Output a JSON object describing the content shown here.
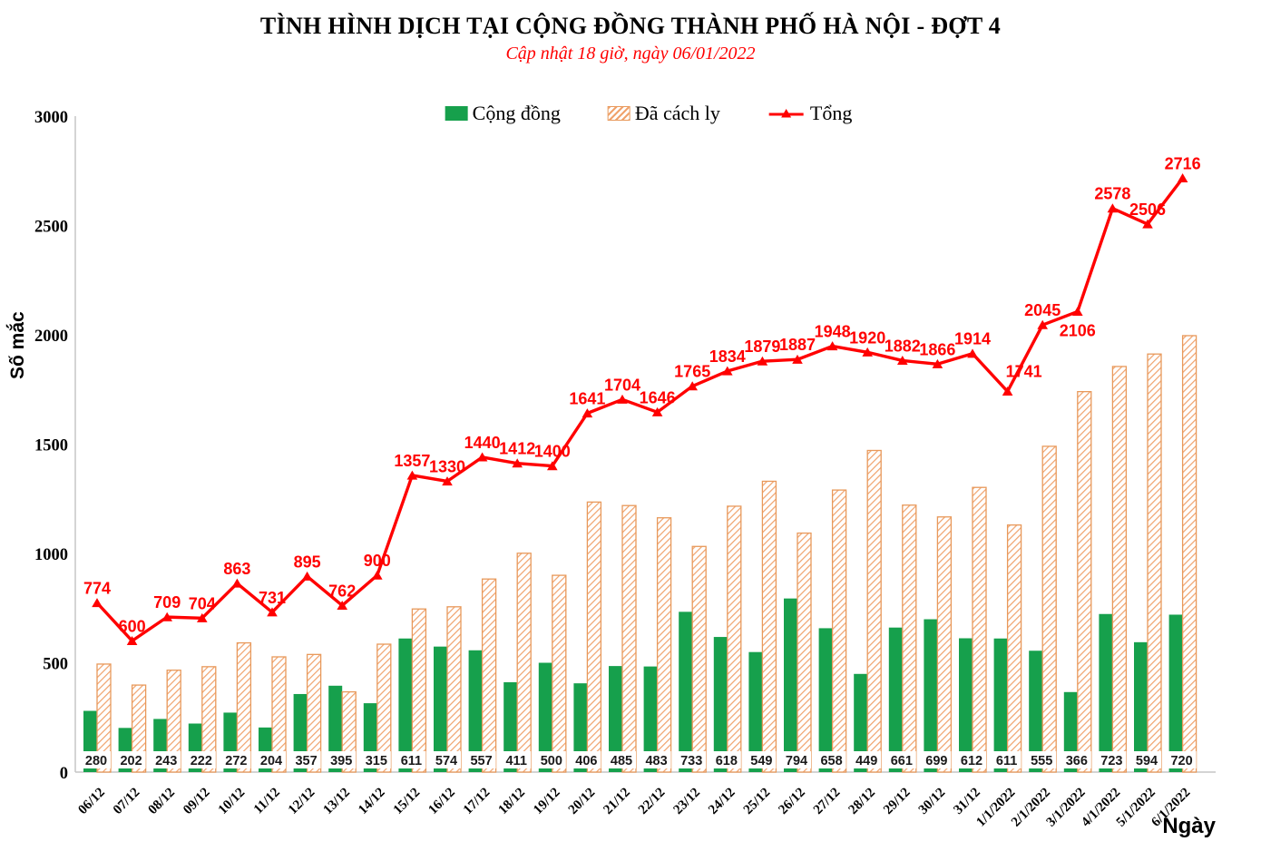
{
  "header": {
    "title": "TÌNH HÌNH DỊCH TẠI CỘNG ĐỒNG THÀNH PHỐ HÀ NỘI - ĐỢT 4",
    "subtitle": "Cập nhật 18 giờ, ngày 06/01/2022"
  },
  "legend": {
    "items": [
      {
        "label": "Cộng đồng",
        "swatch": "solid-green-bar"
      },
      {
        "label": "Đã cách ly",
        "swatch": "orange-hatched-bar"
      },
      {
        "label": "Tổng",
        "swatch": "red-line-triangle-marker"
      }
    ]
  },
  "axes": {
    "y_title": "Số mắc",
    "x_title": "Ngày",
    "y_ticks": [
      0,
      500,
      1000,
      1500,
      2000,
      2500,
      3000
    ]
  },
  "colors": {
    "community_green": "#16a04c",
    "isolated_orange_stripe": "#f0a26c",
    "isolated_orange_border": "#e8995b",
    "total_red": "#ff0000",
    "axis_gray": "#c6c6c6",
    "bar_label_text": "#1a1a1a"
  },
  "chart_data": {
    "type": "bar",
    "title": "TÌNH HÌNH DỊCH TẠI CỘNG ĐỒNG THÀNH PHỐ HÀ NỘI - ĐỢT 4",
    "xlabel": "Ngày",
    "ylabel": "Số mắc",
    "ylim": [
      0,
      3000
    ],
    "grid": false,
    "legend_position": "top",
    "categories": [
      "06/12",
      "07/12",
      "08/12",
      "09/12",
      "10/12",
      "11/12",
      "12/12",
      "13/12",
      "14/12",
      "15/12",
      "16/12",
      "17/12",
      "18/12",
      "19/12",
      "20/12",
      "21/12",
      "22/12",
      "23/12",
      "24/12",
      "25/12",
      "26/12",
      "27/12",
      "28/12",
      "29/12",
      "30/12",
      "31/12",
      "1/1/2022",
      "2/1/2022",
      "3/1/2022",
      "4/1/2022",
      "5/1/2022",
      "6/1/2022"
    ],
    "series": [
      {
        "name": "Cộng đồng",
        "kind": "bar",
        "color": "#16a04c",
        "labeled": true,
        "values": [
          280,
          202,
          243,
          222,
          272,
          204,
          357,
          395,
          315,
          611,
          574,
          557,
          411,
          500,
          406,
          485,
          483,
          733,
          618,
          549,
          794,
          658,
          449,
          661,
          699,
          612,
          611,
          555,
          366,
          723,
          594,
          720
        ]
      },
      {
        "name": "Đã cách ly",
        "kind": "bar-hatched",
        "color": "#f0a26c",
        "labeled": false,
        "values": [
          494,
          398,
          466,
          482,
          591,
          527,
          538,
          367,
          585,
          746,
          756,
          883,
          1001,
          900,
          1235,
          1219,
          1163,
          1032,
          1216,
          1330,
          1093,
          1290,
          1471,
          1221,
          1167,
          1302,
          1130,
          1490,
          1740,
          1855,
          1912,
          1996
        ]
      },
      {
        "name": "Tổng",
        "kind": "line",
        "color": "#ff0000",
        "labeled": true,
        "values": [
          774,
          600,
          709,
          704,
          863,
          731,
          895,
          762,
          900,
          1357,
          1330,
          1440,
          1412,
          1400,
          1641,
          1704,
          1646,
          1765,
          1834,
          1879,
          1887,
          1948,
          1920,
          1882,
          1866,
          1914,
          1741,
          2045,
          2106,
          2578,
          2506,
          2716
        ]
      }
    ]
  }
}
